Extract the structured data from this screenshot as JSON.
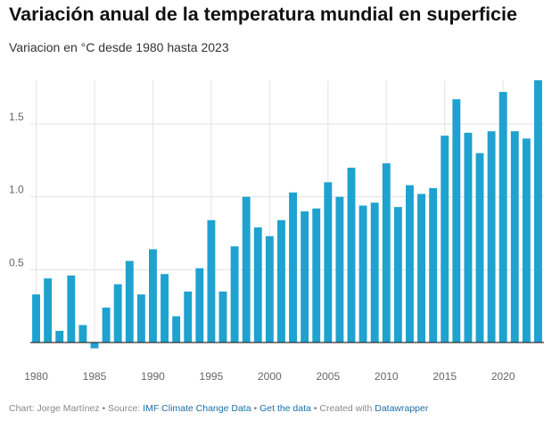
{
  "header": {
    "title": "Variación anual de la temperatura mundial en superficie",
    "subtitle": "Variacion en °C desde 1980 hasta 2023"
  },
  "footer": {
    "prefix": "Chart: Jorge Martínez • Source: ",
    "source_link": "IMF Climate Change Data",
    "sep1": " • ",
    "data_link": "Get the data",
    "sep2": " • Created with ",
    "tool_link": "Datawrapper"
  },
  "colors": {
    "bar": "#1fa2cf",
    "grid": "#e3e3e3",
    "axis": "#333333",
    "tick_text": "#666666"
  },
  "chart_data": {
    "type": "bar",
    "title": "Variación anual de la temperatura mundial en superficie",
    "subtitle": "Variacion en °C desde 1980 hasta 2023",
    "xlabel": "",
    "ylabel": "",
    "ylim": [
      -0.04,
      1.8
    ],
    "yticks": [
      0.5,
      1.0,
      1.5
    ],
    "ytick_labels": [
      "0.5",
      "1.0",
      "1.5"
    ],
    "xticks": [
      1980,
      1985,
      1990,
      1995,
      2000,
      2005,
      2010,
      2015,
      2020
    ],
    "grid": true,
    "categories": [
      1980,
      1981,
      1982,
      1983,
      1984,
      1985,
      1986,
      1987,
      1988,
      1989,
      1990,
      1991,
      1992,
      1993,
      1994,
      1995,
      1996,
      1997,
      1998,
      1999,
      2000,
      2001,
      2002,
      2003,
      2004,
      2005,
      2006,
      2007,
      2008,
      2009,
      2010,
      2011,
      2012,
      2013,
      2014,
      2015,
      2016,
      2017,
      2018,
      2019,
      2020,
      2021,
      2022,
      2023
    ],
    "values": [
      0.33,
      0.44,
      0.08,
      0.46,
      0.12,
      -0.04,
      0.24,
      0.4,
      0.56,
      0.33,
      0.64,
      0.47,
      0.18,
      0.35,
      0.51,
      0.84,
      0.35,
      0.66,
      1.0,
      0.79,
      0.73,
      0.84,
      1.03,
      0.9,
      0.92,
      1.1,
      1.0,
      1.2,
      0.94,
      0.96,
      1.23,
      0.93,
      1.08,
      1.02,
      1.06,
      1.42,
      1.67,
      1.44,
      1.3,
      1.45,
      1.72,
      1.45,
      1.4,
      1.8
    ]
  }
}
